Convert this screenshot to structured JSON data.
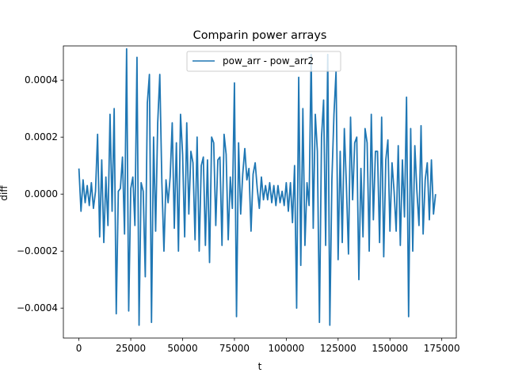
{
  "chart_data": {
    "type": "line",
    "title": "Comparin power arrays",
    "xlabel": "t",
    "ylabel": "diff",
    "xlim": [
      -7500,
      182000
    ],
    "ylim": [
      -0.000505,
      0.00052
    ],
    "xticks": [
      0,
      25000,
      50000,
      75000,
      100000,
      125000,
      150000,
      175000
    ],
    "xtick_labels": [
      "0",
      "25000",
      "50000",
      "75000",
      "100000",
      "125000",
      "150000",
      "175000"
    ],
    "yticks": [
      -0.0004,
      -0.0002,
      0.0,
      0.0002,
      0.0004
    ],
    "ytick_labels": [
      "−0.0004",
      "−0.0002",
      "0.0000",
      "0.0002",
      "0.0004"
    ],
    "legend_position": "upper center",
    "grid": false,
    "series": [
      {
        "name": "pow_arr - pow_arr2",
        "color": "#1f77b4",
        "x": [
          0,
          1000,
          2000,
          3000,
          4000,
          5000,
          6000,
          7000,
          8000,
          9000,
          10000,
          11000,
          12000,
          13000,
          14000,
          15000,
          16000,
          17000,
          18000,
          19000,
          20000,
          21000,
          22000,
          23000,
          24000,
          25000,
          26000,
          27000,
          28000,
          29000,
          30000,
          31000,
          32000,
          33000,
          34000,
          35000,
          36000,
          37000,
          38000,
          39000,
          40000,
          41000,
          42000,
          43000,
          44000,
          45000,
          46000,
          47000,
          48000,
          49000,
          50000,
          51000,
          52000,
          53000,
          54000,
          55000,
          56000,
          57000,
          58000,
          59000,
          60000,
          61000,
          62000,
          63000,
          64000,
          65000,
          66000,
          67000,
          68000,
          69000,
          70000,
          71000,
          72000,
          73000,
          74000,
          75000,
          76000,
          77000,
          78000,
          79000,
          80000,
          81000,
          82000,
          83000,
          84000,
          85000,
          86000,
          87000,
          88000,
          89000,
          90000,
          91000,
          92000,
          93000,
          94000,
          95000,
          96000,
          97000,
          98000,
          99000,
          100000,
          101000,
          102000,
          103000,
          104000,
          105000,
          106000,
          107000,
          108000,
          109000,
          110000,
          111000,
          112000,
          113000,
          114000,
          115000,
          116000,
          117000,
          118000,
          119000,
          120000,
          121000,
          122000,
          123000,
          124000,
          125000,
          126000,
          127000,
          128000,
          129000,
          130000,
          131000,
          132000,
          133000,
          134000,
          135000,
          136000,
          137000,
          138000,
          139000,
          140000,
          141000,
          142000,
          143000,
          144000,
          145000,
          146000,
          147000,
          148000,
          149000,
          150000,
          151000,
          152000,
          153000,
          154000,
          155000,
          156000,
          157000,
          158000,
          159000,
          160000,
          161000,
          162000,
          163000,
          164000,
          165000,
          166000,
          167000,
          168000,
          169000,
          170000,
          171000,
          172000
        ],
        "y": [
          9e-05,
          -6e-05,
          5e-05,
          -3e-05,
          3e-05,
          -4e-05,
          4e-05,
          -5e-05,
          1e-05,
          0.00021,
          -0.00015,
          0.00012,
          -0.00017,
          6e-05,
          -0.00011,
          0.00028,
          -6e-05,
          0.0003,
          -0.00042,
          1e-05,
          2e-05,
          0.00013,
          -0.00014,
          0.00051,
          -0.00041,
          2e-05,
          6e-05,
          -0.00011,
          0.00048,
          -0.00046,
          4e-05,
          1e-05,
          -0.00029,
          0.00032,
          0.00042,
          -0.00045,
          0.0002,
          -0.00013,
          0.00025,
          0.00042,
          4e-05,
          -0.0002,
          5e-05,
          -3e-05,
          6e-05,
          0.00025,
          -0.00012,
          0.00018,
          -0.0002,
          0.00028,
          0.00014,
          -0.00015,
          0.00025,
          -7e-05,
          0.00015,
          0.00011,
          -0.00016,
          0.0002,
          -0.0002,
          0.0001,
          0.00013,
          -0.00018,
          0.00012,
          -0.00024,
          0.0002,
          0.00018,
          -0.00011,
          0.00012,
          0.00013,
          -0.00018,
          0.00021,
          0.00014,
          -0.00016,
          6e-05,
          -5e-05,
          0.00039,
          -0.00043,
          0.00018,
          -7e-05,
          7e-05,
          0.00016,
          5e-05,
          9e-05,
          -0.00013,
          7e-05,
          0.00011,
          2e-05,
          -5e-05,
          6e-05,
          -2e-05,
          3e-05,
          -2e-05,
          4e-05,
          -3e-05,
          3e-05,
          -4e-05,
          3e-05,
          -3e-05,
          1e-05,
          -4e-05,
          4e-05,
          -6e-05,
          4e-05,
          -0.0001,
          0.0001,
          -0.0004,
          0.00041,
          -0.00025,
          0.0003,
          -0.00018,
          4e-05,
          -4e-05,
          0.00049,
          -0.00012,
          0.00028,
          0.00015,
          -0.00045,
          0.0002,
          0.00033,
          -0.00018,
          0.00049,
          -0.00046,
          5e-05,
          0.00028,
          0.00043,
          -0.00023,
          0.00015,
          -0.00017,
          0.00023,
          3e-05,
          -0.00021,
          0.00027,
          -2e-05,
          0.00018,
          0.0002,
          -0.0003,
          9e-05,
          -0.00015,
          0.00023,
          0.00018,
          -0.0002,
          0.00028,
          -9e-05,
          0.00015,
          0.00015,
          -0.00017,
          0.00027,
          -0.00022,
          0.00012,
          0.00019,
          -0.00013,
          0.00011,
          1e-05,
          -0.00013,
          0.00017,
          -0.00018,
          0.00012,
          -8e-05,
          0.00034,
          -0.00043,
          0.00023,
          -0.0002,
          0.00017,
          1e-05,
          -0.00011,
          0.00024,
          -0.00014,
          5e-05,
          0.00011,
          -9e-05,
          0.00012,
          -7e-05,
          0.0
        ]
      }
    ]
  }
}
